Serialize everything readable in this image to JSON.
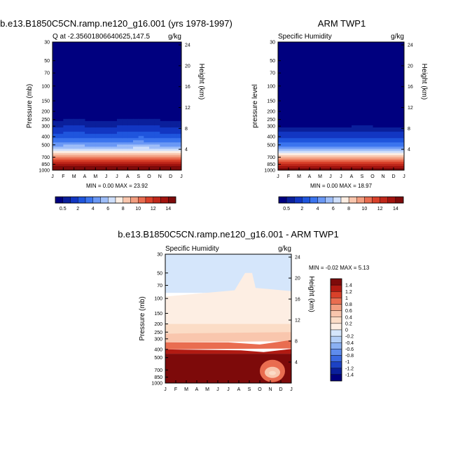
{
  "chart_data": [
    {
      "type": "heatmap",
      "title": "b.e13.B1850C5CN.ramp.ne120_g16.001 (yrs 1978-1997)",
      "subtitle_left": "Q at -2.35601806640625,147.5",
      "subtitle_right": "g/kg",
      "ylabel": "Pressure (mb)",
      "ylabel_right": "Height (km)",
      "months": [
        "J",
        "F",
        "M",
        "A",
        "M",
        "J",
        "J",
        "A",
        "S",
        "O",
        "N",
        "D",
        "J"
      ],
      "pressure_ticks": [
        "30",
        "50",
        "70",
        "100",
        "150",
        "200",
        "250",
        "300",
        "400",
        "500",
        "700",
        "850",
        "1000"
      ],
      "height_ticks": [
        "24",
        "20",
        "16",
        "12",
        "8",
        "4"
      ],
      "stats": "MIN =   0.00 MAX =  23.92",
      "colorbar_labels": [
        "0.5",
        "2",
        "4",
        "6",
        "8",
        "10",
        "12",
        "14"
      ],
      "colorbar_colors": [
        "#00007f",
        "#0a1f9b",
        "#1236c2",
        "#1f55dd",
        "#3b74ee",
        "#6a98f5",
        "#9dbdf8",
        "#cfdffb",
        "#fdeee3",
        "#f9c6ad",
        "#f29e80",
        "#e96d50",
        "#d9412a",
        "#c0271a",
        "#a3140f",
        "#7d0a0a"
      ],
      "profile": [
        {
          "p": 30,
          "q": 0.1
        },
        {
          "p": 150,
          "q": 0.2
        },
        {
          "p": 250,
          "q": 0.4
        },
        {
          "p": 300,
          "q": 0.8
        },
        {
          "p": 400,
          "q": 2.5
        },
        {
          "p": 500,
          "q": 4.5
        },
        {
          "p": 600,
          "q": 7
        },
        {
          "p": 700,
          "q": 9.5
        },
        {
          "p": 850,
          "q": 13
        },
        {
          "p": 1000,
          "q": 16
        }
      ],
      "seasonal_shift": [
        0,
        -10,
        -12,
        -8,
        -6,
        -5,
        -8,
        -12,
        -20,
        -18,
        -10,
        -5,
        0
      ]
    },
    {
      "type": "heatmap",
      "title": "ARM TWP1",
      "subtitle_left": "Specific Humidity",
      "subtitle_right": "g/kg",
      "ylabel": "pressure level",
      "ylabel_right": "Height (km)",
      "months": [
        "J",
        "F",
        "M",
        "A",
        "M",
        "J",
        "J",
        "A",
        "S",
        "O",
        "N",
        "D",
        "J"
      ],
      "pressure_ticks": [
        "30",
        "50",
        "70",
        "100",
        "150",
        "200",
        "250",
        "300",
        "400",
        "500",
        "700",
        "850",
        "1000"
      ],
      "height_ticks": [
        "24",
        "20",
        "16",
        "12",
        "8",
        "4"
      ],
      "stats": "MIN =   0.00 MAX =  18.97",
      "colorbar_labels": [
        "0.5",
        "2",
        "4",
        "6",
        "8",
        "10",
        "12",
        "14"
      ],
      "colorbar_colors": [
        "#00007f",
        "#0a1f9b",
        "#1236c2",
        "#1f55dd",
        "#3b74ee",
        "#6a98f5",
        "#9dbdf8",
        "#cfdffb",
        "#fdeee3",
        "#f9c6ad",
        "#f29e80",
        "#e96d50",
        "#d9412a",
        "#c0271a",
        "#a3140f",
        "#7d0a0a"
      ],
      "profile": [
        {
          "p": 30,
          "q": 0.1
        },
        {
          "p": 250,
          "q": 0.2
        },
        {
          "p": 300,
          "q": 0.4
        },
        {
          "p": 400,
          "q": 1.5
        },
        {
          "p": 500,
          "q": 3.5
        },
        {
          "p": 600,
          "q": 6
        },
        {
          "p": 700,
          "q": 8.5
        },
        {
          "p": 850,
          "q": 12
        },
        {
          "p": 1000,
          "q": 14.5
        }
      ],
      "seasonal_shift": [
        0,
        -3,
        -5,
        -4,
        -2,
        0,
        -3,
        -6,
        -8,
        -6,
        -3,
        -1,
        0
      ]
    },
    {
      "type": "heatmap",
      "title": "b.e13.B1850C5CN.ramp.ne120_g16.001 - ARM TWP1",
      "subtitle_left": "Specific Humidity",
      "subtitle_right": "g/kg",
      "ylabel": "Pressure (mb)",
      "ylabel_right": "Height (km)",
      "months": [
        "J",
        "F",
        "M",
        "A",
        "M",
        "J",
        "J",
        "A",
        "S",
        "O",
        "N",
        "D",
        "J"
      ],
      "pressure_ticks": [
        "30",
        "50",
        "70",
        "100",
        "150",
        "200",
        "250",
        "300",
        "400",
        "500",
        "700",
        "850",
        "1000"
      ],
      "height_ticks": [
        "24",
        "20",
        "16",
        "12",
        "8",
        "4"
      ],
      "stats": "MIN =  -0.02 MAX =    5.13",
      "colorbar_labels": [
        "1.4",
        "1.2",
        "1",
        "0.8",
        "0.6",
        "0.4",
        "0.2",
        "0",
        "-0.2",
        "-0.4",
        "-0.6",
        "-0.8",
        "-1",
        "-1.2",
        "-1.4"
      ],
      "colorbar_colors": [
        "#7d0a0a",
        "#b11a12",
        "#d9412a",
        "#e96d50",
        "#f29e80",
        "#f9c6ad",
        "#fbdcc6",
        "#fdeee3",
        "#d5e6fb",
        "#b3cff7",
        "#8ab0f2",
        "#5f8ced",
        "#3a68e0",
        "#1c42c4",
        "#0a1f9b",
        "#00007f"
      ]
    }
  ]
}
